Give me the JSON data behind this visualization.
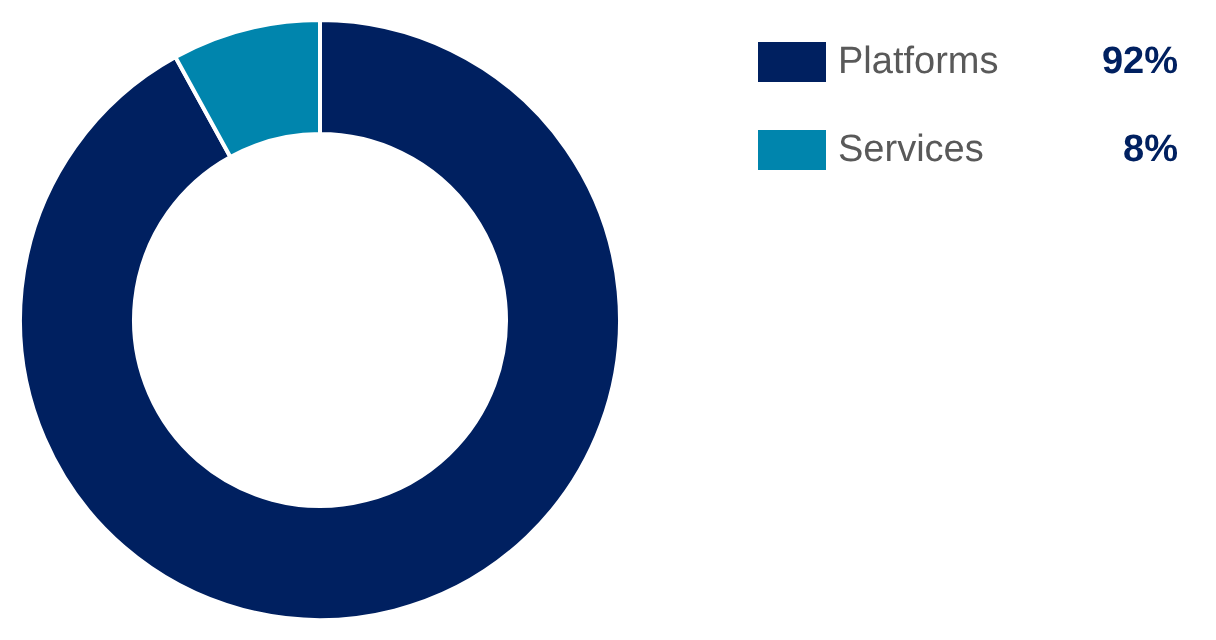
{
  "chart_data": {
    "type": "donut",
    "categories": [
      "Platforms",
      "Services"
    ],
    "values": [
      92,
      8
    ],
    "value_labels": [
      "92%",
      "8%"
    ],
    "colors": [
      "#002060",
      "#0085ad"
    ],
    "legend": "top right"
  }
}
